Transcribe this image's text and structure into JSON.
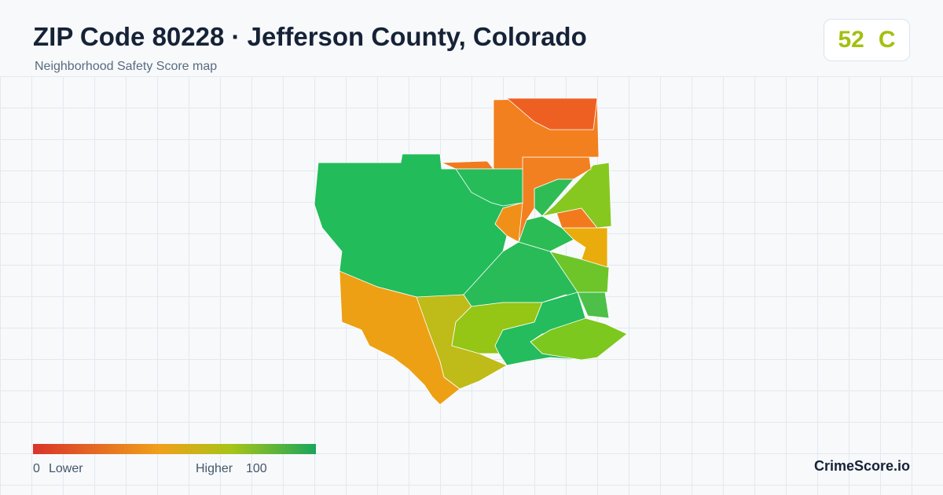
{
  "header": {
    "title": "ZIP Code 80228 · Jefferson County, Colorado",
    "subtitle": "Neighborhood Safety Score map",
    "score": "52",
    "grade": "C"
  },
  "legend": {
    "min": "0",
    "min_label": "Lower",
    "max_label": "Higher",
    "max": "100"
  },
  "footer": {
    "brand": "CrimeScore.io"
  }
}
